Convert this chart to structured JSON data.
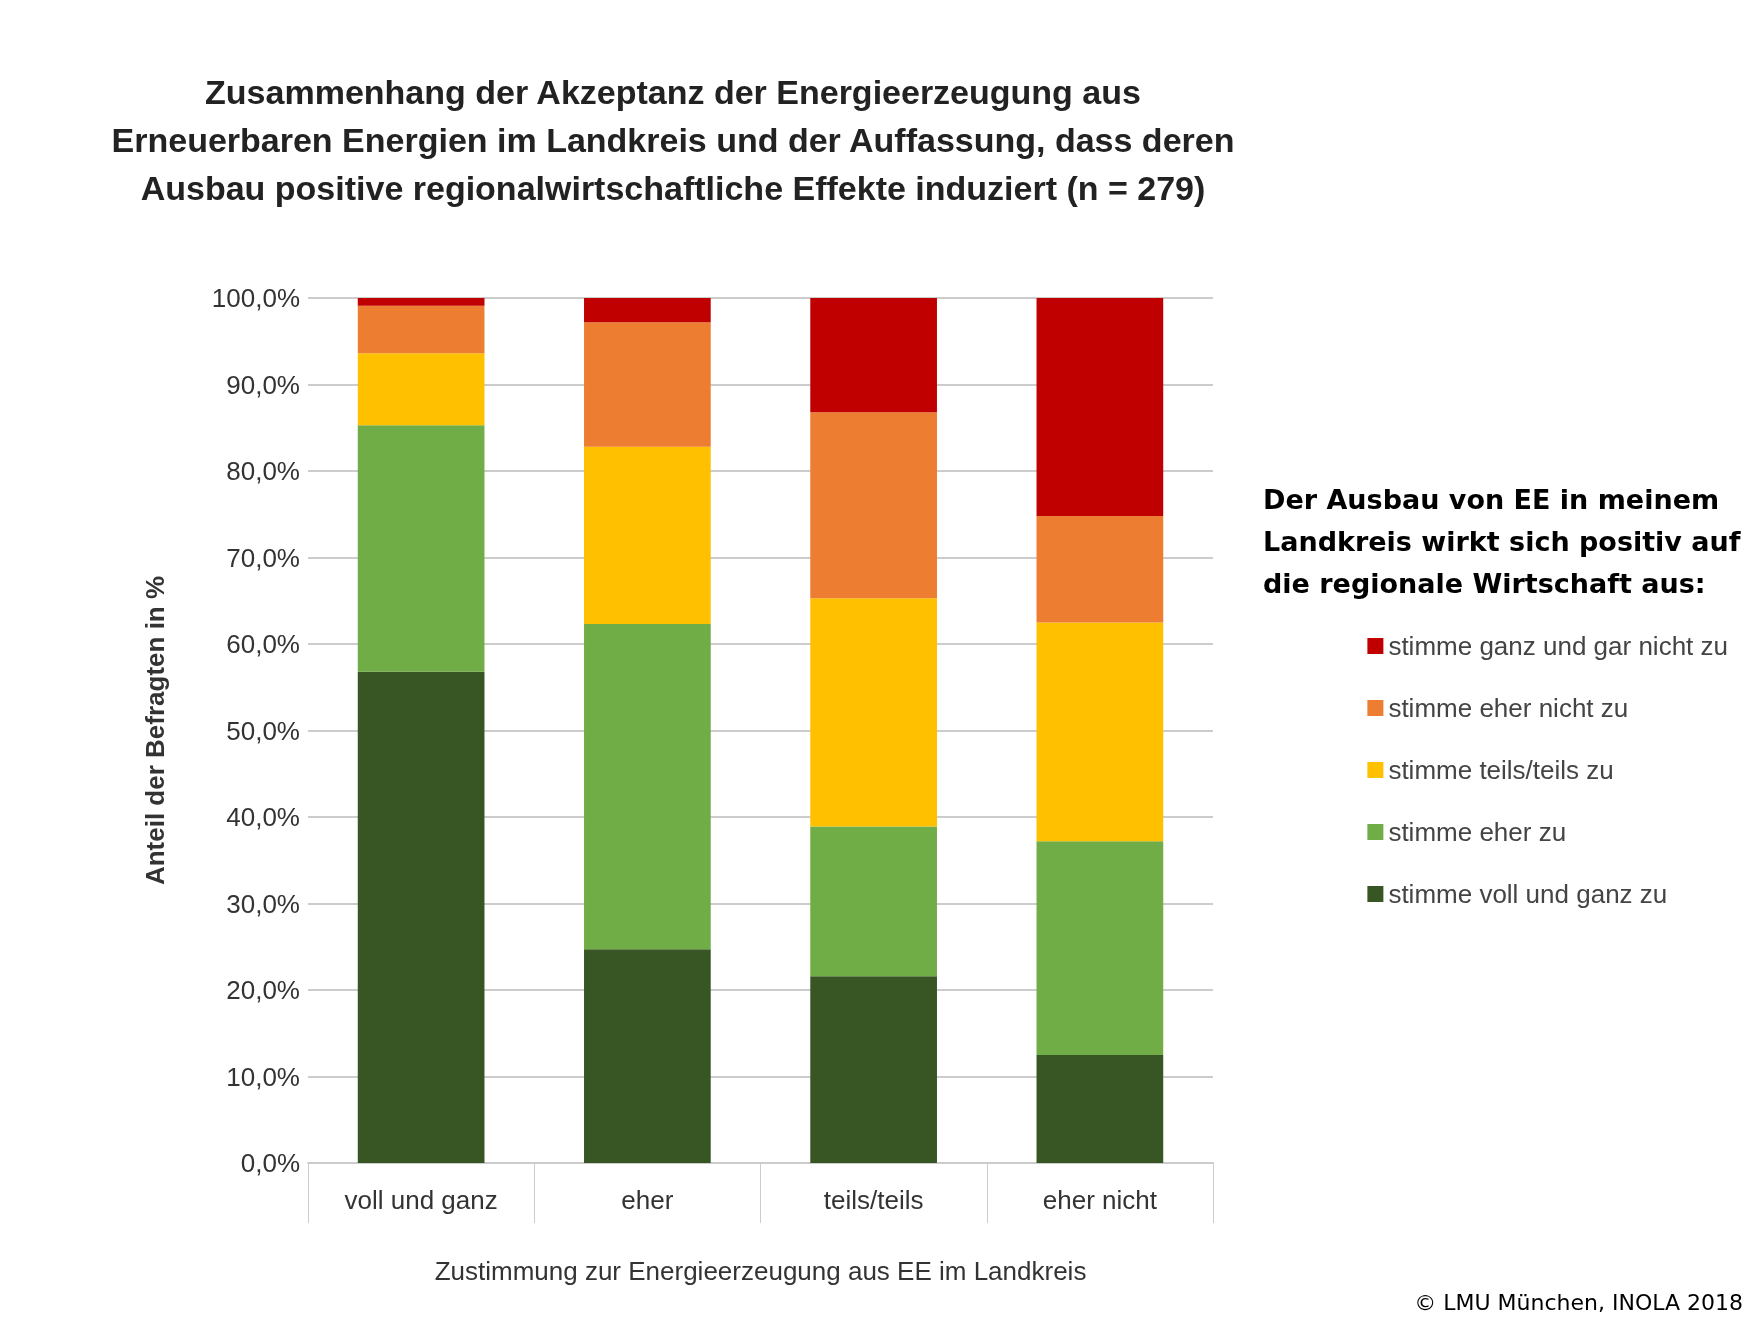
{
  "chart_data": {
    "type": "bar",
    "stacked": true,
    "title": "Zusammenhang der Akzeptanz der Energieerzeugung aus\nErneuerbaren Energien im Landkreis und der Auffassung, dass deren\nAusbau positive regionalwirtschaftliche Effekte induziert (n = 279)",
    "xlabel": "Zustimmung zur Energieerzeugung aus EE im Landkreis",
    "ylabel": "Anteil der Befragten in %",
    "legend_title": "Der Ausbau von EE in meinem\nLandkreis wirkt sich positiv auf\ndie regionale Wirtschaft aus:",
    "legend": "right",
    "grid": "y",
    "categories": [
      "voll und ganz",
      "eher",
      "teils/teils",
      "eher nicht"
    ],
    "series": [
      {
        "name": "stimme voll und ganz zu",
        "color": "#375623",
        "values": [
          56.8,
          24.7,
          21.6,
          12.5
        ]
      },
      {
        "name": "stimme eher zu",
        "color": "#70ad47",
        "values": [
          28.5,
          37.6,
          17.3,
          24.7
        ]
      },
      {
        "name": "stimme teils/teils zu",
        "color": "#ffc000",
        "values": [
          8.3,
          20.5,
          26.4,
          25.3
        ]
      },
      {
        "name": "stimme eher nicht zu",
        "color": "#ed7d31",
        "values": [
          5.5,
          14.4,
          21.5,
          12.3
        ]
      },
      {
        "name": "stimme ganz und gar nicht zu",
        "color": "#c00000",
        "values": [
          0.9,
          2.8,
          13.2,
          25.2
        ]
      }
    ],
    "ylim": [
      0,
      100
    ],
    "yticks": [
      {
        "value": 0,
        "label": "0,0%"
      },
      {
        "value": 10,
        "label": "10,0%"
      },
      {
        "value": 20,
        "label": "20,0%"
      },
      {
        "value": 30,
        "label": "30,0%"
      },
      {
        "value": 40,
        "label": "40,0%"
      },
      {
        "value": 50,
        "label": "50,0%"
      },
      {
        "value": 60,
        "label": "60,0%"
      },
      {
        "value": 70,
        "label": "70,0%"
      },
      {
        "value": 80,
        "label": "80,0%"
      },
      {
        "value": 90,
        "label": "90,0%"
      },
      {
        "value": 100,
        "label": "100,0%"
      }
    ],
    "annotations": [
      "© LMU München, INOLA 2018"
    ]
  }
}
